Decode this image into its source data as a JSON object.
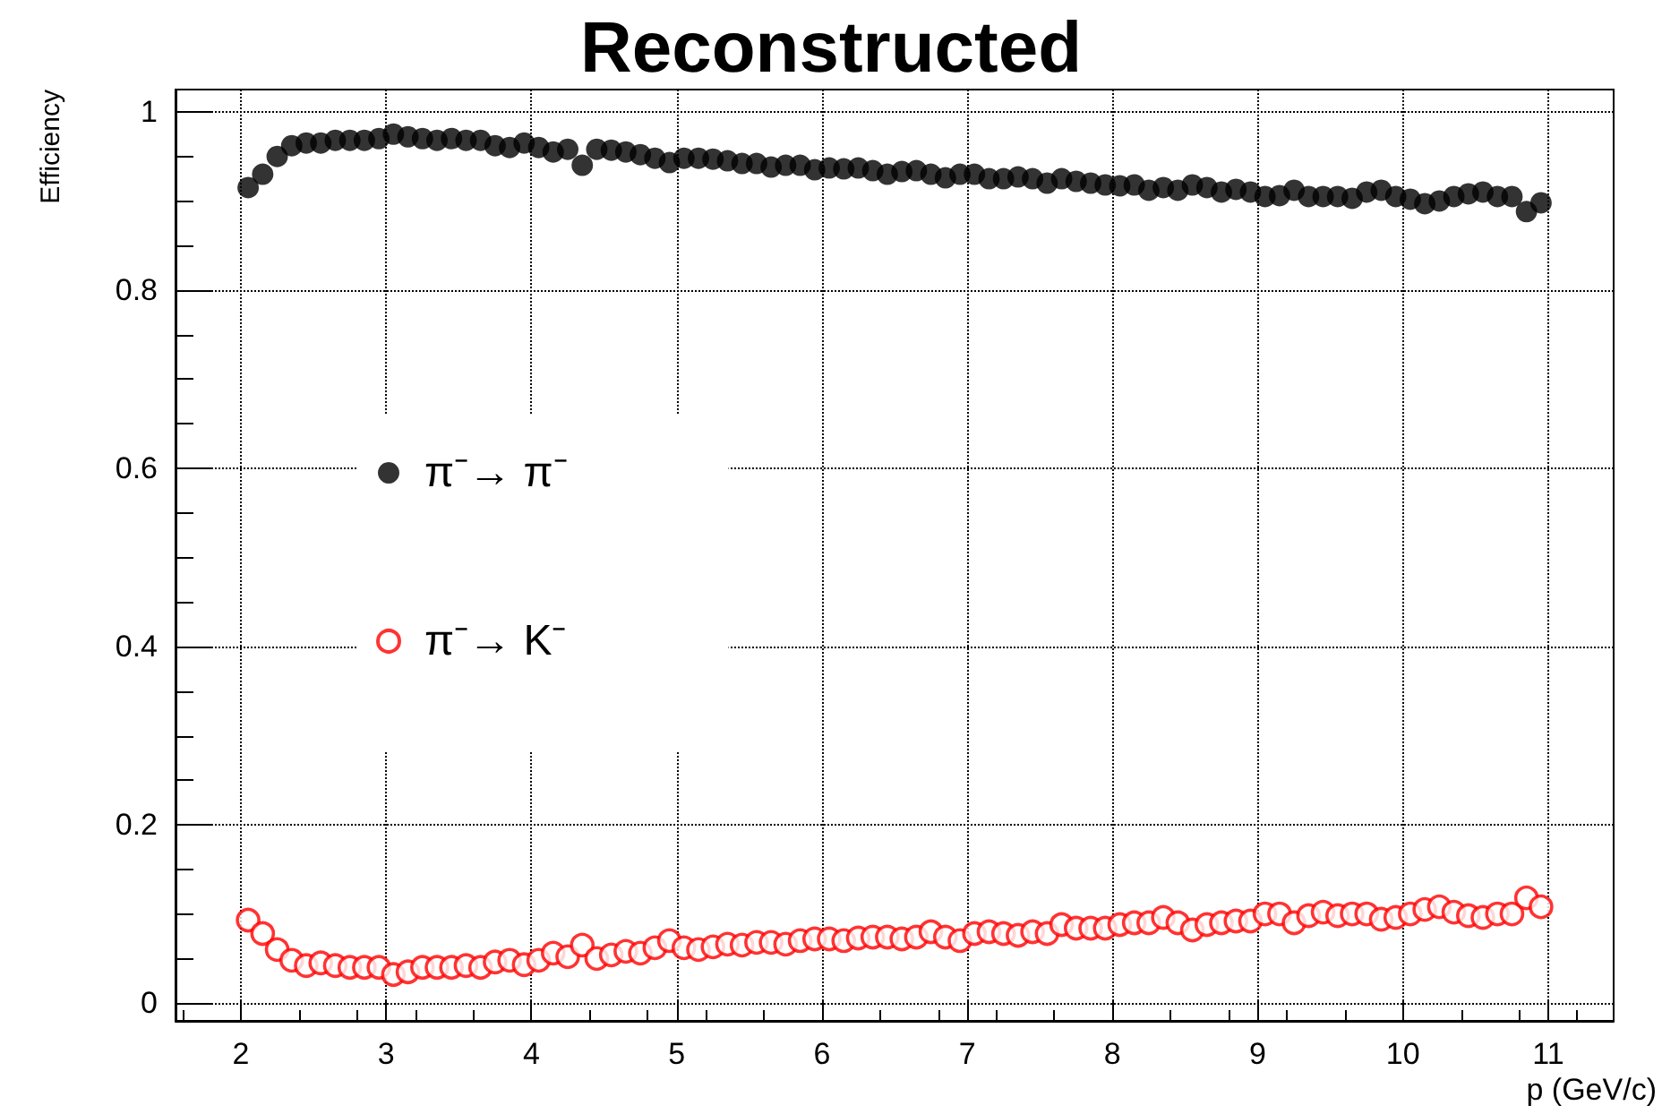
{
  "chart_data": {
    "type": "scatter",
    "title": "Reconstructed",
    "xlabel": "p (GeV/c)",
    "ylabel": "Efficiency",
    "xlim": [
      1.55,
      11.45
    ],
    "xticks": [
      2,
      3,
      4,
      5,
      6,
      7,
      8,
      9,
      10,
      11
    ],
    "ylim": [
      -0.02,
      1.025
    ],
    "yticks": [
      0,
      0.2,
      0.4,
      0.6,
      0.8,
      1
    ],
    "grid": true,
    "legend": "left",
    "marker": "circle",
    "x": [
      2.05,
      2.15,
      2.25,
      2.35,
      2.45,
      2.55,
      2.65,
      2.75,
      2.85,
      2.95,
      3.05,
      3.15,
      3.25,
      3.35,
      3.45,
      3.55,
      3.65,
      3.75,
      3.85,
      3.95,
      4.05,
      4.15,
      4.25,
      4.35,
      4.45,
      4.55,
      4.65,
      4.75,
      4.85,
      4.95,
      5.05,
      5.15,
      5.25,
      5.35,
      5.45,
      5.55,
      5.65,
      5.75,
      5.85,
      5.95,
      6.05,
      6.15,
      6.25,
      6.35,
      6.45,
      6.55,
      6.65,
      6.75,
      6.85,
      6.95,
      7.05,
      7.15,
      7.25,
      7.35,
      7.45,
      7.55,
      7.65,
      7.75,
      7.85,
      7.95,
      8.05,
      8.15,
      8.25,
      8.35,
      8.45,
      8.55,
      8.65,
      8.75,
      8.85,
      8.95,
      9.05,
      9.15,
      9.25,
      9.35,
      9.45,
      9.55,
      9.65,
      9.75,
      9.85,
      9.95,
      10.05,
      10.15,
      10.25,
      10.35,
      10.45,
      10.55,
      10.65,
      10.75,
      10.85,
      10.95
    ],
    "series": [
      {
        "name": "π⁻→ π⁻",
        "color": "#000000",
        "values": [
          0.915,
          0.93,
          0.95,
          0.962,
          0.965,
          0.965,
          0.968,
          0.968,
          0.968,
          0.97,
          0.975,
          0.972,
          0.97,
          0.968,
          0.97,
          0.968,
          0.968,
          0.962,
          0.96,
          0.965,
          0.96,
          0.955,
          0.958,
          0.94,
          0.958,
          0.957,
          0.955,
          0.952,
          0.948,
          0.943,
          0.948,
          0.948,
          0.947,
          0.945,
          0.942,
          0.942,
          0.938,
          0.94,
          0.94,
          0.935,
          0.937,
          0.936,
          0.937,
          0.934,
          0.93,
          0.933,
          0.934,
          0.93,
          0.926,
          0.93,
          0.93,
          0.925,
          0.925,
          0.927,
          0.925,
          0.92,
          0.925,
          0.922,
          0.92,
          0.918,
          0.917,
          0.918,
          0.912,
          0.915,
          0.912,
          0.918,
          0.915,
          0.91,
          0.913,
          0.91,
          0.905,
          0.906,
          0.912,
          0.905,
          0.905,
          0.905,
          0.903,
          0.91,
          0.912,
          0.905,
          0.902,
          0.897,
          0.9,
          0.905,
          0.908,
          0.91,
          0.905,
          0.905,
          0.888,
          0.898
        ]
      },
      {
        "name": "π⁻→ K⁻",
        "color": "#ff0000",
        "values": [
          0.093,
          0.078,
          0.06,
          0.048,
          0.042,
          0.045,
          0.042,
          0.04,
          0.04,
          0.04,
          0.032,
          0.035,
          0.04,
          0.04,
          0.04,
          0.042,
          0.04,
          0.046,
          0.048,
          0.043,
          0.048,
          0.056,
          0.052,
          0.065,
          0.05,
          0.054,
          0.058,
          0.056,
          0.062,
          0.07,
          0.062,
          0.06,
          0.063,
          0.066,
          0.065,
          0.068,
          0.068,
          0.066,
          0.07,
          0.072,
          0.072,
          0.07,
          0.073,
          0.074,
          0.074,
          0.072,
          0.074,
          0.08,
          0.074,
          0.07,
          0.078,
          0.08,
          0.078,
          0.076,
          0.08,
          0.078,
          0.088,
          0.084,
          0.084,
          0.084,
          0.088,
          0.09,
          0.09,
          0.096,
          0.09,
          0.082,
          0.088,
          0.09,
          0.092,
          0.092,
          0.1,
          0.1,
          0.09,
          0.098,
          0.102,
          0.098,
          0.1,
          0.1,
          0.094,
          0.096,
          0.1,
          0.105,
          0.108,
          0.102,
          0.098,
          0.096,
          0.1,
          0.1,
          0.118,
          0.108
        ]
      }
    ]
  }
}
